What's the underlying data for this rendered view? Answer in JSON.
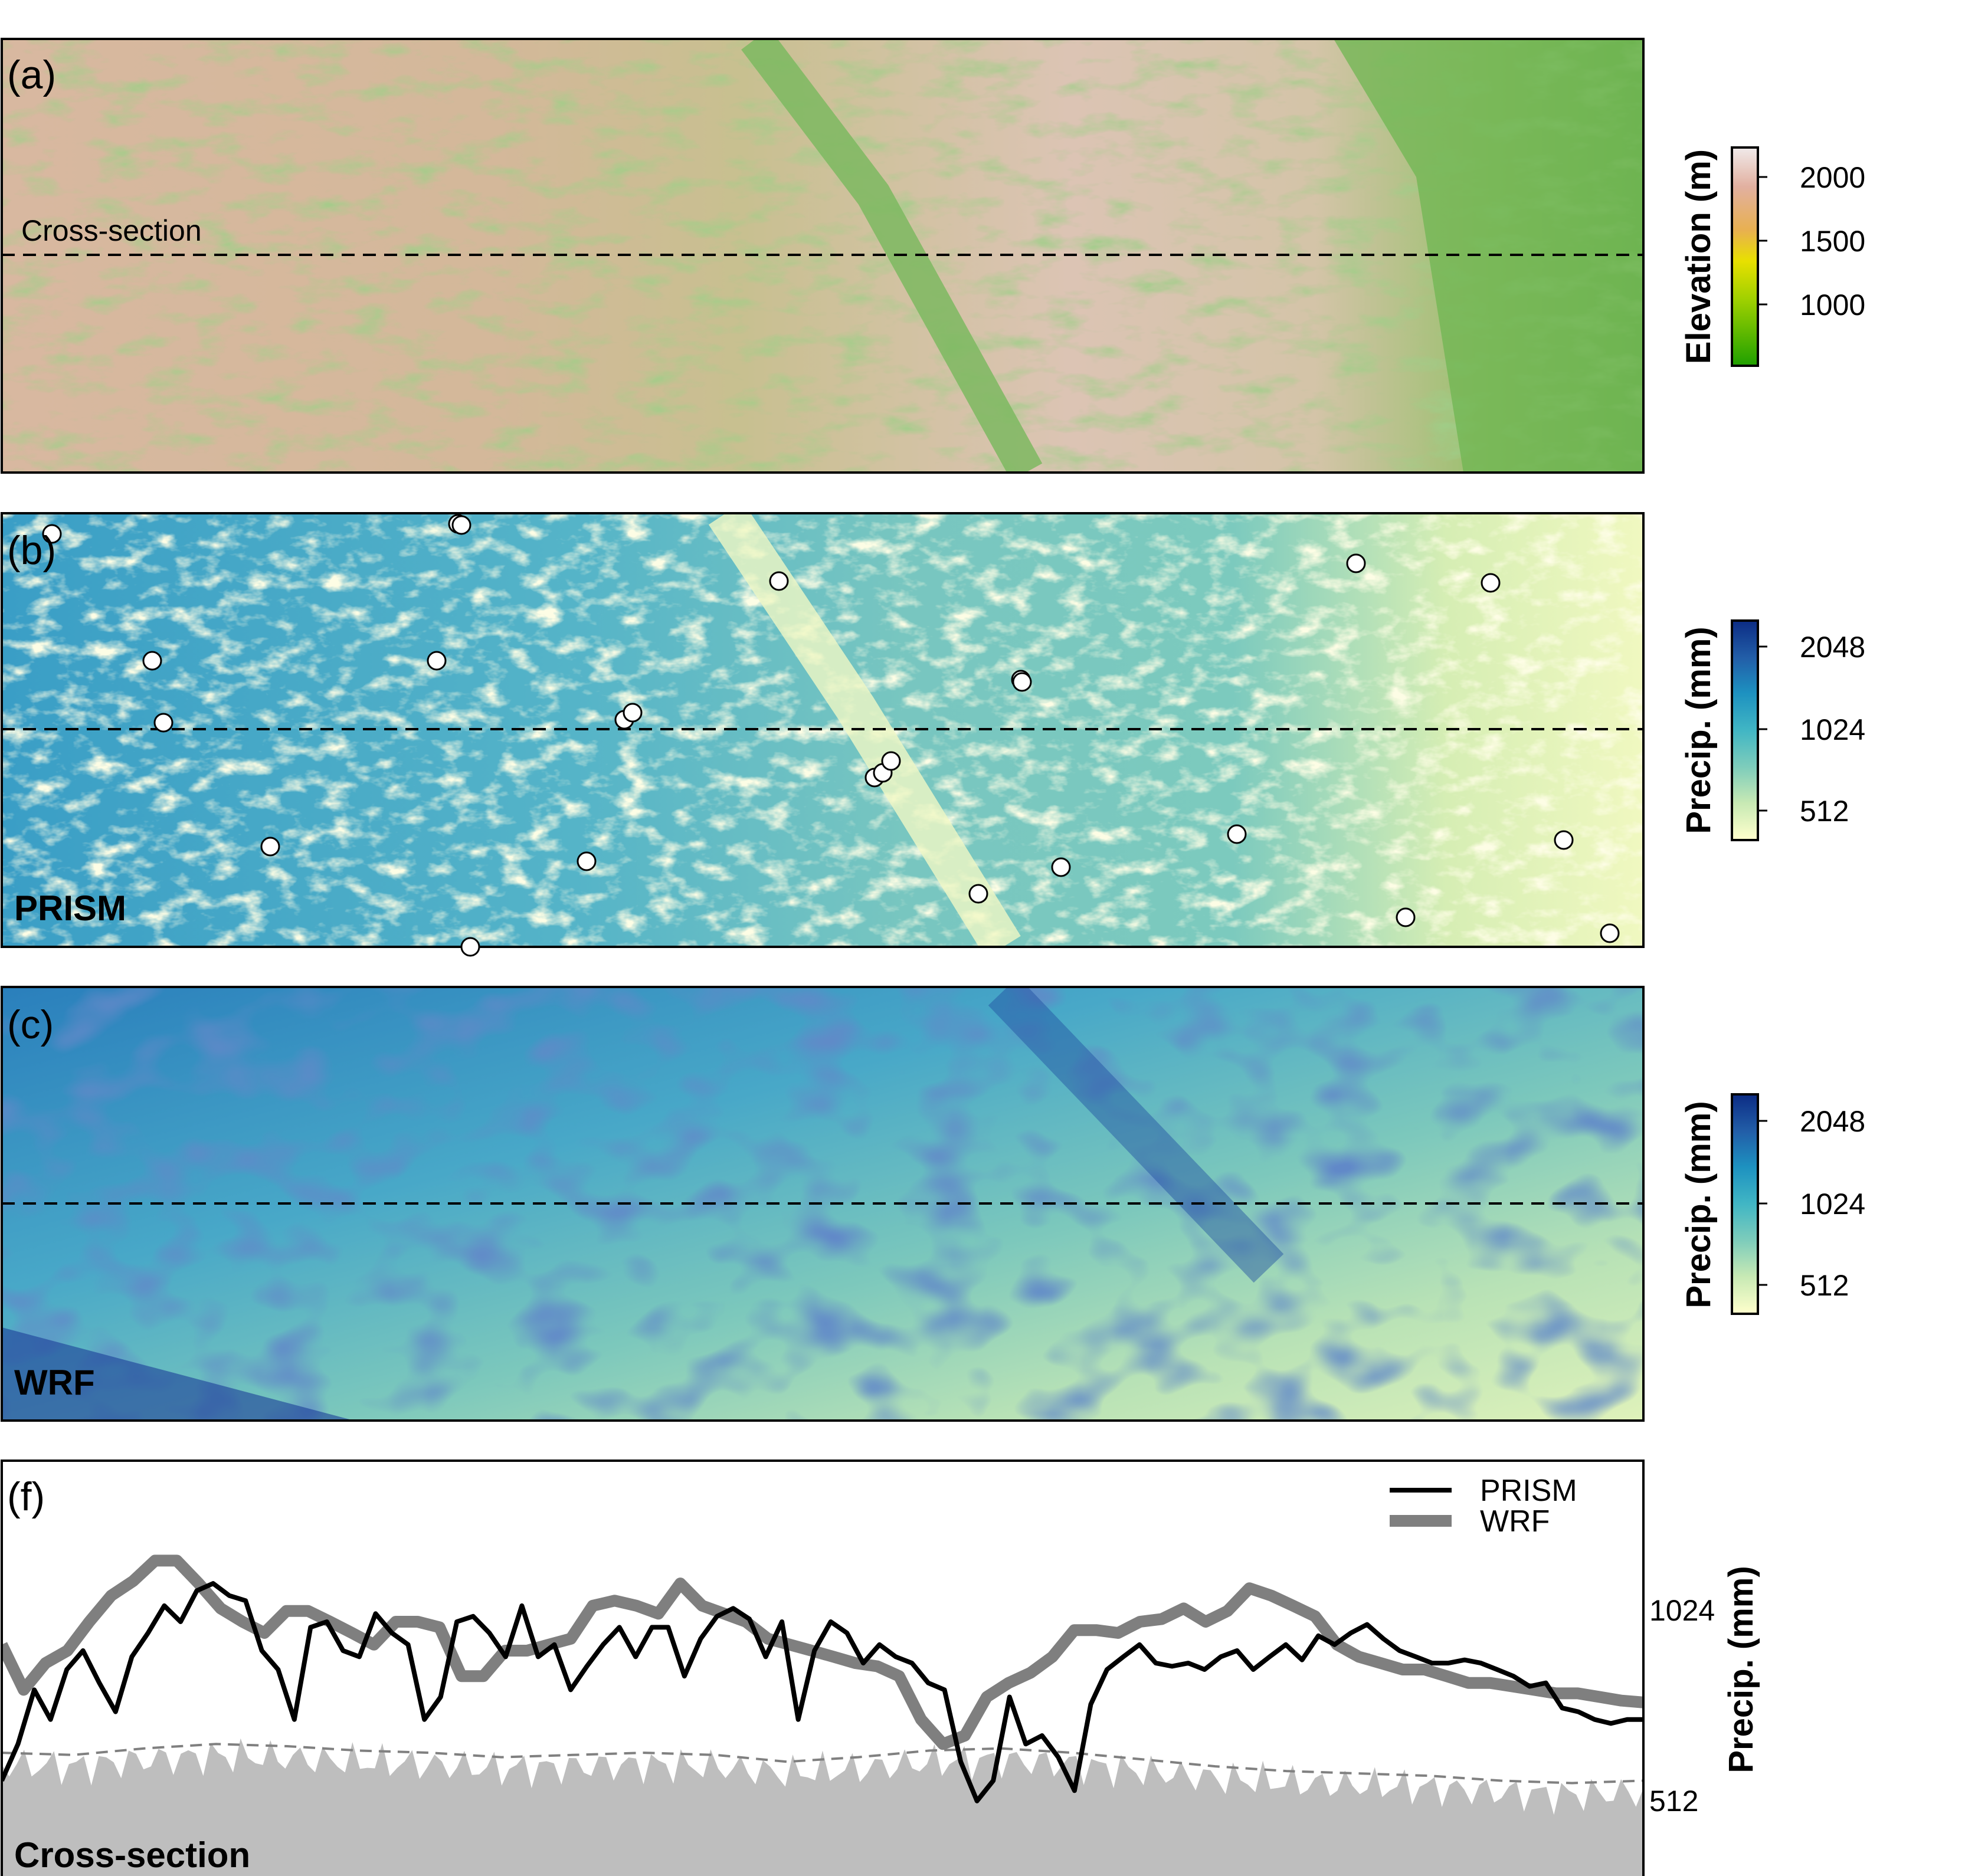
{
  "panels": {
    "a": {
      "label": "(a)",
      "dashed_line_label": "Cross-section"
    },
    "b": {
      "label": "(b)",
      "name": "PRISM"
    },
    "c": {
      "label": "(c)",
      "name": "WRF"
    },
    "f": {
      "label": "(f)",
      "name": "Cross-section"
    }
  },
  "colorbars": {
    "elevation": {
      "title": "Elevation (m)",
      "ticks": [
        "2000",
        "1500",
        "1000"
      ],
      "colors": [
        "#1fa000",
        "#9ed000",
        "#e8e000",
        "#e8b050",
        "#e2b0a0",
        "#f0eaea"
      ]
    },
    "precip_b": {
      "title": "Precip. (mm)",
      "ticks": [
        "2048",
        "1024",
        "512"
      ],
      "colors": [
        "#ffffcc",
        "#c7e9b4",
        "#7fcdbb",
        "#41b6c4",
        "#1d91c0",
        "#225ea8",
        "#0c2c84"
      ]
    },
    "precip_c": {
      "title": "Precip. (mm)",
      "ticks": [
        "2048",
        "1024",
        "512"
      ],
      "colors": [
        "#ffffcc",
        "#c7e9b4",
        "#7fcdbb",
        "#41b6c4",
        "#1d91c0",
        "#225ea8",
        "#0c2c84"
      ]
    }
  },
  "chart_data": {
    "type": "line",
    "ylabel": "Precip. (mm)",
    "y_ticks": [
      "1024",
      "512"
    ],
    "log_scale_y": true,
    "legend_position": "top-right",
    "series": [
      {
        "name": "PRISM",
        "color": "#000000",
        "values": [
          560,
          640,
          780,
          700,
          840,
          900,
          800,
          720,
          880,
          960,
          1060,
          1000,
          1120,
          1150,
          1100,
          1080,
          900,
          840,
          700,
          980,
          1000,
          900,
          880,
          1030,
          960,
          920,
          700,
          760,
          1000,
          1020,
          960,
          880,
          1060,
          880,
          920,
          780,
          850,
          920,
          980,
          880,
          980,
          980,
          820,
          940,
          1020,
          1050,
          1010,
          880,
          1000,
          700,
          900,
          1000,
          960,
          860,
          920,
          880,
          860,
          800,
          780,
          600,
          520,
          560,
          760,
          640,
          660,
          610,
          540,
          740,
          840,
          880,
          920,
          860,
          850,
          860,
          840,
          880,
          900,
          840,
          880,
          920,
          870,
          950,
          920,
          960,
          990,
          940,
          900,
          880,
          860,
          860,
          870,
          860,
          840,
          820,
          790,
          800,
          730,
          720,
          700,
          690,
          700,
          700
        ]
      },
      {
        "name": "WRF",
        "color": "#7f7f7f",
        "values": [
          920,
          780,
          860,
          900,
          1000,
          1100,
          1160,
          1250,
          1250,
          1150,
          1050,
          1000,
          960,
          1040,
          1040,
          1000,
          960,
          920,
          1000,
          1000,
          980,
          820,
          820,
          900,
          900,
          920,
          940,
          1060,
          1080,
          1060,
          1030,
          1150,
          1060,
          1030,
          1000,
          940,
          920,
          900,
          880,
          860,
          850,
          820,
          700,
          640,
          660,
          760,
          800,
          830,
          880,
          970,
          970,
          960,
          1000,
          1010,
          1050,
          1000,
          1040,
          1130,
          1100,
          1060,
          1020,
          920,
          880,
          860,
          840,
          840,
          820,
          800,
          800,
          790,
          780,
          770,
          770,
          760,
          750,
          745
        ]
      }
    ],
    "dashed_reference": {
      "color": "#808080",
      "values": [
        620,
        615,
        630,
        640,
        635,
        625,
        620,
        610,
        615,
        620,
        615,
        600,
        610,
        625,
        630,
        620,
        605,
        590,
        580,
        575,
        570,
        560,
        555,
        560
      ]
    },
    "terrain_fill_color": "#bebebe"
  }
}
